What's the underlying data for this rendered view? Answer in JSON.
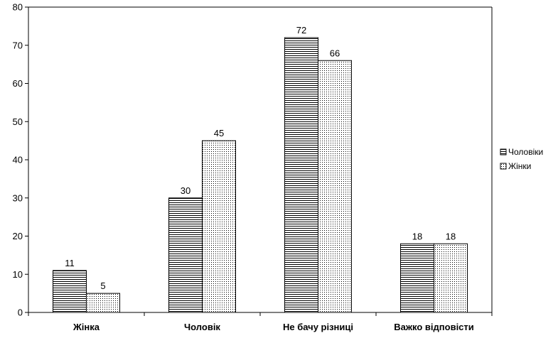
{
  "chart_data": {
    "type": "bar",
    "categories": [
      "Жінка",
      "Чоловік",
      "Не бачу різниці",
      "Важко відповісти"
    ],
    "series": [
      {
        "name": "Чоловіки",
        "values": [
          11,
          30,
          72,
          18
        ],
        "pattern": "horizontal-lines"
      },
      {
        "name": "Жінки",
        "values": [
          5,
          45,
          66,
          18
        ],
        "pattern": "dots"
      }
    ],
    "ylim": [
      0,
      80
    ],
    "yticks": [
      0,
      10,
      20,
      30,
      40,
      50,
      60,
      70,
      80
    ],
    "data_labels": true,
    "grid": false,
    "legend_position": "right",
    "colors": {
      "bar_stroke": "#000000",
      "bar_fill": "#ffffff",
      "axis": "#000000"
    }
  }
}
